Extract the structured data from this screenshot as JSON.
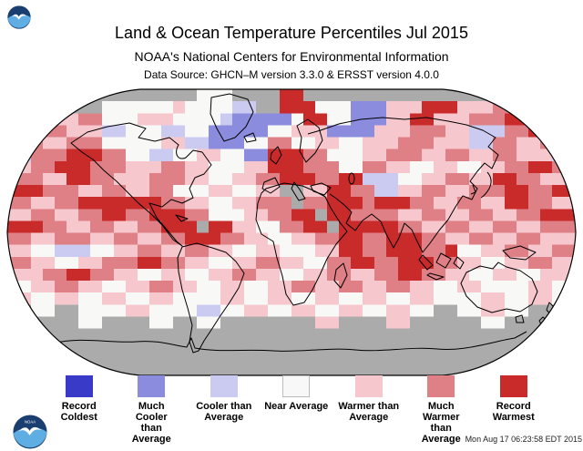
{
  "header": {
    "title": "Land & Ocean Temperature Percentiles Jul 2015",
    "subtitle": "NOAA's National Centers for Environmental Information",
    "data_source": "Data Source: GHCN–M version 3.3.0 & ERSST version 4.0.0"
  },
  "footer": {
    "timestamp": "Mon Aug 17 06:23:58 EDT 2015"
  },
  "legend": {
    "items": [
      {
        "label": "Record Coldest",
        "color": "#3a3ac8"
      },
      {
        "label": "Much Cooler than Average",
        "color": "#8c8cde"
      },
      {
        "label": "Cooler than Average",
        "color": "#cbcbf2"
      },
      {
        "label": "Near Average",
        "color": "#f8f8f8"
      },
      {
        "label": "Warmer than Average",
        "color": "#f6c8cd"
      },
      {
        "label": "Much Warmer than Average",
        "color": "#de8085"
      },
      {
        "label": "Record Warmest",
        "color": "#c92a2a"
      }
    ]
  },
  "map": {
    "projection": "robinson",
    "no_data_color": "#ababab",
    "outline_color": "#000000",
    "grid": {
      "cols": 48,
      "rows_count": 24,
      "palette": {
        "G": "#ababab",
        "W": "#f8f8f6",
        "C": "#cbcbf2",
        "B": "#8c8cde",
        "D": "#3a3ac8",
        "P": "#f6c8cd",
        "M": "#de8085",
        "R": "#c92a2a"
      },
      "rows": [
        "GGGGGGGGGGGGGGGGWWWGGGGRRGGGGGGGGGGGGGGGGGGGGGGG",
        "GGGGGGGGWWWWWWPWWWWCCGGRRRWWWBBBPPPRRRPPPMMMRRGG",
        "MMPPPPMMWWWPPPWWWWCBBBBBWRRWWBBBPPRRPPPMMMRRRMMM",
        "PPMMMPPPCCWWWCCWWBBBBBWWPPPBBBBPPPMMMPPCCCMMRRPP",
        "MMMPPMMMWWWWWPPCCBBBWWMMWWPPWWPPPMMMPPPCCMMPPMMM",
        "CCMMMRRRMMWWCCWWPPWWBBRRRMMWWWPPMMMPPMMPPMMPPPCC",
        "PPMMRRRMMMPPPMMPPWWWPPRRRMMMWWMMPPWWPPWWPPMMRRMM",
        "MMMPPRRMMPPPMMMPPWWPPMMRRRMMRRCCCWWPPMMPPRRMMPPP",
        "RRRMMMPPMMPPMMWWWPPWWPPGGPPRRMMCCPPMMPPMMMRRMMRR",
        "MMPPMMRRRRRRRMMPPWWPPMMMGMMRRRMRRRMMPPMMPPRRMMPP",
        "PPMMPPMMRRMMRRRMMWWWPPMMRRGRRMMMMPPMMPPMMPPMMRRR",
        "RRRMMPPMMPPMMRRRGRRPPWWMMRRGRRRRRMMPPMMPPMMPPMMM",
        "MMPPMMMPPMMPPMMRRRMMPPWWPPMMRRMMRRRMMPPMMPPMMPPP",
        "PPWWCCCWWPPMMPPMMPPWWPPWWWPPRRMMRRRMMRWWPPMMPPMM",
        "MMPPWWPPMMMRRMMPPWWPPMMPPWWMMRRMMRRRMMPPWWPPMMPP",
        "PPPMMRRMMPPWWPPWWPPMMPPWWPPMMPPMMRRMMPPWWPPWWPPP",
        "WWPPMMPPWWPPMMPPWWPPWWPPMMPPMMPPMMPPWWPPWWWWPPWW",
        "PPWWPPWWPPWWPPWWWWPPWWPPWWPPWWPPWWPPWWWWPPWWPPWW",
        "GGWWGGWWWWPPWWWWCCWWPPWWPPWWPPWWPPWWGGWWPPWWGGGG",
        "GGGGGGWWGGGGWWGGWWGGGGGGGGPPGGGGPPGGGGGGWWGGGGGG",
        "GGGGGGGGGGGGGGGGGGGGGGGGGGGGGGGGGGGGGGGGGGGGGGGG",
        "GGGGGGGGGGGGGGGGGGGGGGGGGGGGGGGGGGGGGGGGGGGGGGGG",
        "GGGGGGGGGGGGGGGGGGGGGGGGGGGGGGGGGGGGGGGGGGGGGGGG",
        "GGGGGGGGGGGGGGGGGGGGGGGGGGGGGGGGGGGGGGGGGGGGGGGG"
      ]
    }
  }
}
